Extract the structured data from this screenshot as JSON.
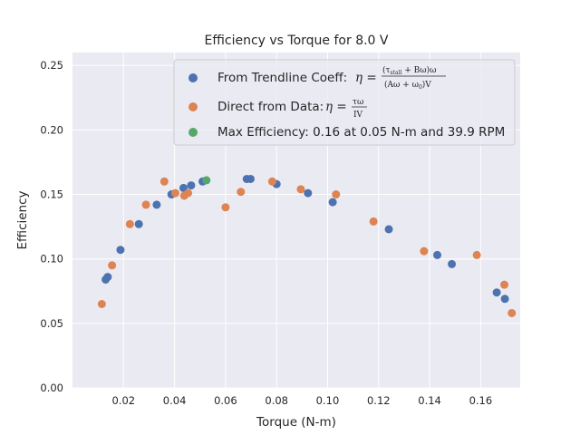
{
  "chart_data": {
    "type": "scatter",
    "title": "Efficiency vs Torque for 8.0 V",
    "xlabel": "Torque (N-m)",
    "ylabel": "Efficiency",
    "xlim": [
      0.0,
      0.1755
    ],
    "ylim": [
      0.0,
      0.26
    ],
    "xticks": [
      0.02,
      0.04,
      0.06,
      0.08,
      0.1,
      0.12,
      0.14,
      0.16
    ],
    "xtick_labels": [
      "0.02",
      "0.04",
      "0.06",
      "0.08",
      "0.10",
      "0.12",
      "0.14",
      "0.16"
    ],
    "yticks": [
      0.0,
      0.05,
      0.1,
      0.15,
      0.2,
      0.25
    ],
    "ytick_labels": [
      "0.00",
      "0.05",
      "0.10",
      "0.15",
      "0.20",
      "0.25"
    ],
    "grid": true,
    "legend_position": "top-right",
    "series": [
      {
        "name": "From Trendline Coeff",
        "label_prefix": "From Trendline Coeff: ",
        "color": "#4c72b0",
        "points": [
          [
            0.013,
            0.084
          ],
          [
            0.0138,
            0.086
          ],
          [
            0.0188,
            0.107
          ],
          [
            0.026,
            0.127
          ],
          [
            0.033,
            0.142
          ],
          [
            0.0388,
            0.15
          ],
          [
            0.0435,
            0.155
          ],
          [
            0.0465,
            0.157
          ],
          [
            0.051,
            0.16
          ],
          [
            0.0683,
            0.162
          ],
          [
            0.0698,
            0.162
          ],
          [
            0.08,
            0.158
          ],
          [
            0.0923,
            0.151
          ],
          [
            0.102,
            0.144
          ],
          [
            0.124,
            0.123
          ],
          [
            0.143,
            0.103
          ],
          [
            0.1487,
            0.096
          ],
          [
            0.1663,
            0.074
          ],
          [
            0.1695,
            0.069
          ]
        ]
      },
      {
        "name": "Direct from Data",
        "label_prefix": "Direct from Data: ",
        "color": "#dd8452",
        "points": [
          [
            0.0115,
            0.065
          ],
          [
            0.0155,
            0.095
          ],
          [
            0.0225,
            0.127
          ],
          [
            0.0288,
            0.142
          ],
          [
            0.036,
            0.16
          ],
          [
            0.0403,
            0.151
          ],
          [
            0.0438,
            0.149
          ],
          [
            0.0453,
            0.151
          ],
          [
            0.06,
            0.14
          ],
          [
            0.066,
            0.152
          ],
          [
            0.0783,
            0.16
          ],
          [
            0.0895,
            0.154
          ],
          [
            0.1033,
            0.15
          ],
          [
            0.118,
            0.129
          ],
          [
            0.1378,
            0.106
          ],
          [
            0.1585,
            0.103
          ],
          [
            0.1693,
            0.08
          ],
          [
            0.1722,
            0.058
          ]
        ]
      },
      {
        "name": "Max Efficiency: 0.16 at 0.05 N-m and 39.9 RPM",
        "label_prefix": "Max Efficiency: 0.16 at 0.05 N-m and 39.9 RPM",
        "color": "#55a868",
        "points": [
          [
            0.0525,
            0.161
          ]
        ]
      }
    ]
  }
}
